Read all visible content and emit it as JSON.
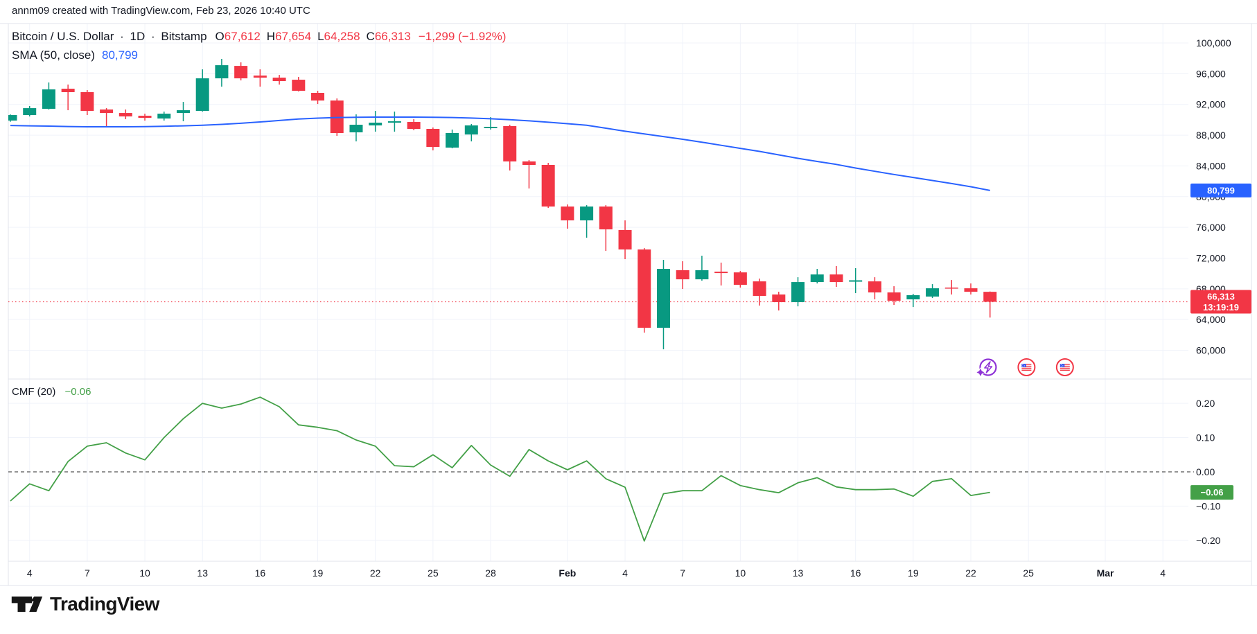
{
  "header": {
    "attribution": "annm09 created with TradingView.com, Feb 23, 2026 10:40 UTC"
  },
  "legend": {
    "symbol": "Bitcoin / U.S. Dollar",
    "separator": "·",
    "interval": "1D",
    "exchange": "Bitstamp",
    "ohlc": {
      "o_label": "O",
      "o": "67,612",
      "h_label": "H",
      "h": "67,654",
      "l_label": "L",
      "l": "64,258",
      "c_label": "C",
      "c": "66,313",
      "change": "−1,299 (−1.92%)"
    },
    "sma_label": "SMA (50, close)",
    "sma_value": "80,799"
  },
  "indicator": {
    "label": "CMF (20)",
    "value": "−0.06"
  },
  "badges": {
    "sma_price": "80,799",
    "last_price": "66,313",
    "countdown": "13:19:19",
    "cmf_value": "−0.06"
  },
  "footer": {
    "brand": "TradingView"
  },
  "colors": {
    "up": "#089981",
    "down": "#F23645",
    "sma_line": "#2962FF",
    "cmf_line": "#43A047",
    "sma_badge": "#2962FF",
    "last_badge": "#F23645",
    "cmf_badge": "#43A047",
    "grid": "#F0F3FA",
    "frame": "#E0E3EB",
    "text": "#131722",
    "badge_text": "#FFFFFF",
    "event_purple": "#8E33D6",
    "flag_ring": "#F23645",
    "flag_canton": "#3D5AF0",
    "dotted_last": "#F23645",
    "zero_line": "#555555"
  },
  "events": {
    "icons": [
      {
        "name": "ai-lightning-event-icon",
        "day": 50.9
      },
      {
        "name": "us-flag-event-icon",
        "day": 52.9
      },
      {
        "name": "us-flag-event-icon",
        "day": 54.9
      }
    ]
  },
  "chart_data": {
    "type": "candlestick+line",
    "title": "Bitcoin / U.S. Dollar · 1D · Bitstamp",
    "legend_position": "top-left",
    "grid": true,
    "last_price": 66313,
    "dates": [
      "Jan 3",
      "Jan 4",
      "Jan 5",
      "Jan 6",
      "Jan 7",
      "Jan 8",
      "Jan 9",
      "Jan 10",
      "Jan 11",
      "Jan 12",
      "Jan 13",
      "Jan 14",
      "Jan 15",
      "Jan 16",
      "Jan 17",
      "Jan 18",
      "Jan 19",
      "Jan 20",
      "Jan 21",
      "Jan 22",
      "Jan 23",
      "Jan 24",
      "Jan 25",
      "Jan 26",
      "Jan 27",
      "Jan 28",
      "Jan 29",
      "Jan 30",
      "Jan 31",
      "Feb 1",
      "Feb 2",
      "Feb 3",
      "Feb 4",
      "Feb 5",
      "Feb 6",
      "Feb 7",
      "Feb 8",
      "Feb 9",
      "Feb 10",
      "Feb 11",
      "Feb 12",
      "Feb 13",
      "Feb 14",
      "Feb 15",
      "Feb 16",
      "Feb 17",
      "Feb 18",
      "Feb 19",
      "Feb 20",
      "Feb 21",
      "Feb 22",
      "Feb 23"
    ],
    "ohlc": [
      [
        89900,
        90700,
        89750,
        90620
      ],
      [
        90620,
        91800,
        90440,
        91520
      ],
      [
        91430,
        94860,
        91340,
        93960
      ],
      [
        94050,
        94590,
        91250,
        93600
      ],
      [
        93600,
        93870,
        90620,
        91160
      ],
      [
        91340,
        91520,
        89180,
        90890
      ],
      [
        90890,
        91340,
        90080,
        90440
      ],
      [
        90530,
        90800,
        89900,
        90260
      ],
      [
        90170,
        91070,
        89900,
        90800
      ],
      [
        90890,
        92330,
        89810,
        91250
      ],
      [
        91160,
        96570,
        91070,
        95400
      ],
      [
        95400,
        97930,
        94320,
        97110
      ],
      [
        97020,
        97480,
        95130,
        95400
      ],
      [
        95760,
        96570,
        94320,
        95490
      ],
      [
        95490,
        95850,
        94590,
        95040
      ],
      [
        95220,
        95580,
        93690,
        93780
      ],
      [
        93510,
        93780,
        92060,
        92510
      ],
      [
        92510,
        92780,
        87910,
        88280
      ],
      [
        88370,
        90710,
        87190,
        89360
      ],
      [
        89270,
        91160,
        88460,
        89630
      ],
      [
        89630,
        91070,
        88460,
        89810
      ],
      [
        89720,
        90080,
        88640,
        88820
      ],
      [
        88820,
        89000,
        86020,
        86470
      ],
      [
        86380,
        88730,
        86290,
        88280
      ],
      [
        88090,
        89450,
        87190,
        89270
      ],
      [
        88910,
        90350,
        88730,
        89090
      ],
      [
        89180,
        89360,
        83400,
        84580
      ],
      [
        84580,
        84760,
        81060,
        84130
      ],
      [
        84130,
        84400,
        78530,
        78710
      ],
      [
        78710,
        78980,
        75830,
        76910
      ],
      [
        76910,
        78890,
        74650,
        78710
      ],
      [
        78710,
        78890,
        72940,
        75740
      ],
      [
        75650,
        76910,
        71860,
        73120
      ],
      [
        73120,
        73300,
        62300,
        62930
      ],
      [
        62930,
        71770,
        60130,
        70600
      ],
      [
        70420,
        71590,
        67980,
        69240
      ],
      [
        69240,
        72310,
        69060,
        70420
      ],
      [
        70230,
        71410,
        68430,
        70050
      ],
      [
        70140,
        70320,
        68160,
        68520
      ],
      [
        68970,
        69330,
        65820,
        67080
      ],
      [
        67260,
        67620,
        65180,
        66270
      ],
      [
        66270,
        69510,
        65720,
        68880
      ],
      [
        68880,
        70600,
        68700,
        69870
      ],
      [
        69870,
        70960,
        68250,
        68880
      ],
      [
        68930,
        70690,
        67440,
        69110
      ],
      [
        68970,
        69510,
        66630,
        67530
      ],
      [
        67530,
        68340,
        65910,
        66450
      ],
      [
        66630,
        67350,
        65630,
        67170
      ],
      [
        66990,
        68610,
        66810,
        68070
      ],
      [
        68160,
        69150,
        67260,
        68070
      ],
      [
        68070,
        68700,
        67260,
        67620
      ],
      [
        67612,
        67654,
        64258,
        66313
      ]
    ],
    "series": [
      {
        "name": "SMA (50, close)",
        "type": "line",
        "values": [
          89260,
          89220,
          89180,
          89130,
          89090,
          89090,
          89090,
          89110,
          89160,
          89220,
          89300,
          89410,
          89550,
          89720,
          89910,
          90100,
          90220,
          90300,
          90330,
          90350,
          90350,
          90350,
          90330,
          90300,
          90230,
          90140,
          90010,
          89870,
          89690,
          89500,
          89290,
          88910,
          88510,
          88160,
          87820,
          87470,
          87090,
          86680,
          86290,
          85890,
          85440,
          84990,
          84580,
          84190,
          83720,
          83300,
          82890,
          82500,
          82100,
          81700,
          81290,
          80799
        ]
      },
      {
        "name": "CMF (20)",
        "type": "line",
        "pane": "lower",
        "values": [
          -0.085,
          -0.035,
          -0.055,
          0.03,
          0.075,
          0.085,
          0.055,
          0.035,
          0.1,
          0.155,
          0.2,
          0.186,
          0.198,
          0.218,
          0.19,
          0.137,
          0.13,
          0.12,
          0.093,
          0.075,
          0.018,
          0.015,
          0.05,
          0.012,
          0.077,
          0.02,
          -0.013,
          0.065,
          0.032,
          0.006,
          0.032,
          -0.02,
          -0.045,
          -0.202,
          -0.064,
          -0.055,
          -0.055,
          -0.011,
          -0.04,
          -0.052,
          -0.061,
          -0.032,
          -0.017,
          -0.044,
          -0.052,
          -0.052,
          -0.05,
          -0.071,
          -0.028,
          -0.02,
          -0.069,
          -0.06
        ]
      }
    ],
    "price_axis": {
      "ticks": [
        {
          "label": "100,000",
          "v": 100000
        },
        {
          "label": "96,000",
          "v": 96000
        },
        {
          "label": "92,000",
          "v": 92000
        },
        {
          "label": "88,000",
          "v": 88000
        },
        {
          "label": "84,000",
          "v": 84000
        },
        {
          "label": "80,000",
          "v": 80000
        },
        {
          "label": "76,000",
          "v": 76000
        },
        {
          "label": "72,000",
          "v": 72000
        },
        {
          "label": "68,000",
          "v": 68000
        },
        {
          "label": "64,000",
          "v": 64000
        },
        {
          "label": "60,000",
          "v": 60000
        }
      ],
      "range": [
        56260,
        102530
      ]
    },
    "cmf_axis": {
      "ticks": [
        {
          "label": "0.20",
          "v": 0.2
        },
        {
          "label": "0.10",
          "v": 0.1
        },
        {
          "label": "0.00",
          "v": 0.0
        },
        {
          "label": "−0.10",
          "v": -0.1
        },
        {
          "label": "−0.20",
          "v": -0.2
        }
      ],
      "range": [
        -0.261,
        0.271
      ]
    },
    "time_axis": {
      "ticks": [
        {
          "label": "4",
          "day": 1
        },
        {
          "label": "7",
          "day": 4
        },
        {
          "label": "10",
          "day": 7
        },
        {
          "label": "13",
          "day": 10
        },
        {
          "label": "16",
          "day": 13
        },
        {
          "label": "19",
          "day": 16
        },
        {
          "label": "22",
          "day": 19
        },
        {
          "label": "25",
          "day": 22
        },
        {
          "label": "28",
          "day": 25
        },
        {
          "label": "Feb",
          "day": 29,
          "bold": true
        },
        {
          "label": "4",
          "day": 32
        },
        {
          "label": "7",
          "day": 35
        },
        {
          "label": "10",
          "day": 38
        },
        {
          "label": "13",
          "day": 41
        },
        {
          "label": "16",
          "day": 44
        },
        {
          "label": "19",
          "day": 47
        },
        {
          "label": "22",
          "day": 50
        },
        {
          "label": "25",
          "day": 53
        },
        {
          "label": "Mar",
          "day": 57,
          "bold": true
        },
        {
          "label": "4",
          "day": 60
        }
      ]
    }
  }
}
